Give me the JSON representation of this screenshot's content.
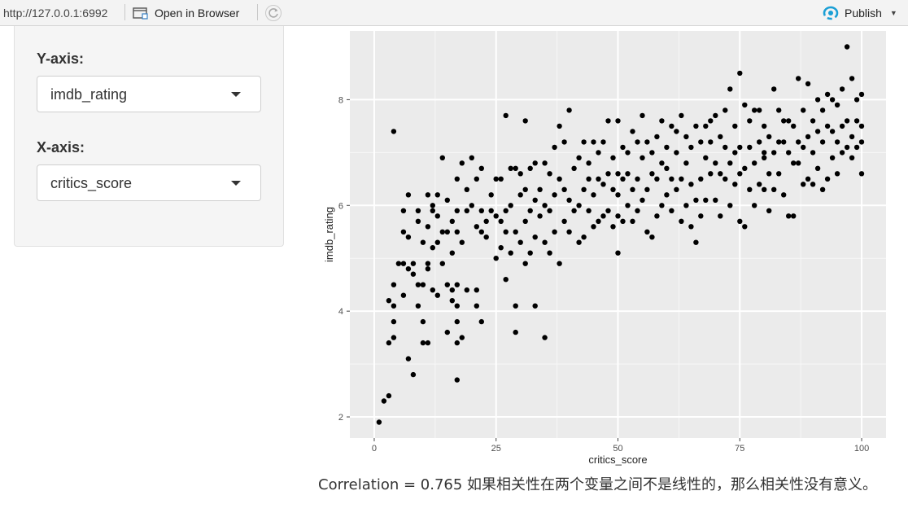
{
  "toolbar": {
    "url": "http://127.0.0.1:6992",
    "open_in_browser_label": "Open in Browser",
    "publish_label": "Publish",
    "accent_color": "#1a9fd5"
  },
  "sidebar": {
    "y_axis_label": "Y-axis:",
    "y_axis_value": "imdb_rating",
    "x_axis_label": "X-axis:",
    "x_axis_value": "critics_score"
  },
  "caption": "Correlation = 0.765 如果相关性在两个变量之间不是线性的，那么相关性没有意义。",
  "chart_data": {
    "type": "scatter",
    "xlabel": "critics_score",
    "ylabel": "imdb_rating",
    "xlim": [
      -5,
      105
    ],
    "ylim": [
      1.6,
      9.3
    ],
    "xticks": [
      0,
      25,
      50,
      75,
      100
    ],
    "yticks": [
      2,
      4,
      6,
      8
    ],
    "grid": true,
    "point_color": "#000000",
    "points": [
      [
        1,
        1.9
      ],
      [
        2,
        2.3
      ],
      [
        3,
        2.4
      ],
      [
        3,
        3.4
      ],
      [
        3,
        4.2
      ],
      [
        4,
        3.5
      ],
      [
        4,
        3.8
      ],
      [
        4,
        4.1
      ],
      [
        4,
        4.5
      ],
      [
        4,
        7.4
      ],
      [
        5,
        4.9
      ],
      [
        6,
        4.3
      ],
      [
        6,
        4.9
      ],
      [
        6,
        5.9
      ],
      [
        6,
        5.5
      ],
      [
        7,
        3.1
      ],
      [
        7,
        4.8
      ],
      [
        7,
        5.4
      ],
      [
        7,
        6.2
      ],
      [
        8,
        2.8
      ],
      [
        8,
        4.7
      ],
      [
        8,
        4.9
      ],
      [
        9,
        4.1
      ],
      [
        9,
        4.5
      ],
      [
        9,
        5.7
      ],
      [
        9,
        5.9
      ],
      [
        10,
        3.4
      ],
      [
        10,
        3.8
      ],
      [
        10,
        4.5
      ],
      [
        10,
        5.3
      ],
      [
        11,
        3.4
      ],
      [
        11,
        4.8
      ],
      [
        11,
        5.6
      ],
      [
        11,
        6.2
      ],
      [
        11,
        4.9
      ],
      [
        12,
        4.4
      ],
      [
        12,
        5.2
      ],
      [
        12,
        5.9
      ],
      [
        12,
        6.0
      ],
      [
        13,
        4.3
      ],
      [
        13,
        5.3
      ],
      [
        13,
        5.8
      ],
      [
        13,
        6.2
      ],
      [
        14,
        6.9
      ],
      [
        14,
        5.5
      ],
      [
        14,
        4.9
      ],
      [
        15,
        3.6
      ],
      [
        15,
        4.5
      ],
      [
        15,
        5.5
      ],
      [
        15,
        6.1
      ],
      [
        16,
        4.2
      ],
      [
        16,
        4.4
      ],
      [
        16,
        5.1
      ],
      [
        16,
        5.7
      ],
      [
        17,
        2.7
      ],
      [
        17,
        3.4
      ],
      [
        17,
        3.8
      ],
      [
        17,
        4.1
      ],
      [
        17,
        4.5
      ],
      [
        17,
        5.5
      ],
      [
        17,
        5.9
      ],
      [
        17,
        6.5
      ],
      [
        18,
        3.5
      ],
      [
        18,
        5.3
      ],
      [
        18,
        6.8
      ],
      [
        19,
        4.4
      ],
      [
        19,
        5.9
      ],
      [
        19,
        6.3
      ],
      [
        20,
        6.9
      ],
      [
        20,
        6.0
      ],
      [
        21,
        4.4
      ],
      [
        21,
        4.1
      ],
      [
        21,
        5.6
      ],
      [
        21,
        6.5
      ],
      [
        22,
        3.8
      ],
      [
        22,
        5.5
      ],
      [
        22,
        5.9
      ],
      [
        22,
        6.7
      ],
      [
        23,
        5.7
      ],
      [
        23,
        5.4
      ],
      [
        24,
        5.9
      ],
      [
        24,
        6.2
      ],
      [
        25,
        5.0
      ],
      [
        25,
        5.8
      ],
      [
        25,
        6.5
      ],
      [
        26,
        5.2
      ],
      [
        26,
        5.7
      ],
      [
        26,
        6.5
      ],
      [
        27,
        4.6
      ],
      [
        27,
        5.5
      ],
      [
        27,
        5.9
      ],
      [
        27,
        7.7
      ],
      [
        28,
        5.1
      ],
      [
        28,
        6.0
      ],
      [
        28,
        6.7
      ],
      [
        29,
        3.6
      ],
      [
        29,
        4.1
      ],
      [
        29,
        5.5
      ],
      [
        29,
        6.7
      ],
      [
        30,
        5.3
      ],
      [
        30,
        6.2
      ],
      [
        30,
        6.6
      ],
      [
        31,
        4.9
      ],
      [
        31,
        5.7
      ],
      [
        31,
        6.3
      ],
      [
        31,
        7.6
      ],
      [
        32,
        5.1
      ],
      [
        32,
        5.9
      ],
      [
        32,
        6.7
      ],
      [
        33,
        4.1
      ],
      [
        33,
        5.4
      ],
      [
        33,
        6.1
      ],
      [
        33,
        6.8
      ],
      [
        34,
        5.8
      ],
      [
        34,
        6.3
      ],
      [
        35,
        3.5
      ],
      [
        35,
        5.3
      ],
      [
        35,
        6.0
      ],
      [
        35,
        6.8
      ],
      [
        36,
        5.1
      ],
      [
        36,
        5.9
      ],
      [
        36,
        6.6
      ],
      [
        37,
        5.5
      ],
      [
        37,
        6.2
      ],
      [
        37,
        7.1
      ],
      [
        38,
        4.9
      ],
      [
        38,
        6.5
      ],
      [
        38,
        7.5
      ],
      [
        39,
        5.7
      ],
      [
        39,
        6.3
      ],
      [
        39,
        7.2
      ],
      [
        40,
        5.5
      ],
      [
        40,
        6.1
      ],
      [
        40,
        7.8
      ],
      [
        41,
        5.9
      ],
      [
        41,
        6.7
      ],
      [
        42,
        5.3
      ],
      [
        42,
        6.0
      ],
      [
        42,
        6.9
      ],
      [
        43,
        5.4
      ],
      [
        43,
        6.3
      ],
      [
        43,
        7.2
      ],
      [
        44,
        5.9
      ],
      [
        44,
        6.5
      ],
      [
        44,
        6.8
      ],
      [
        45,
        5.6
      ],
      [
        45,
        6.2
      ],
      [
        45,
        7.2
      ],
      [
        46,
        5.7
      ],
      [
        46,
        6.5
      ],
      [
        46,
        7.0
      ],
      [
        47,
        5.8
      ],
      [
        47,
        6.4
      ],
      [
        47,
        7.2
      ],
      [
        48,
        5.9
      ],
      [
        48,
        6.6
      ],
      [
        48,
        7.6
      ],
      [
        49,
        5.6
      ],
      [
        49,
        6.3
      ],
      [
        49,
        6.9
      ],
      [
        50,
        5.1
      ],
      [
        50,
        5.8
      ],
      [
        50,
        6.2
      ],
      [
        50,
        6.6
      ],
      [
        50,
        7.6
      ],
      [
        51,
        5.7
      ],
      [
        51,
        6.5
      ],
      [
        51,
        7.1
      ],
      [
        52,
        6.0
      ],
      [
        52,
        6.6
      ],
      [
        52,
        7.0
      ],
      [
        53,
        5.7
      ],
      [
        53,
        6.3
      ],
      [
        53,
        7.4
      ],
      [
        54,
        5.9
      ],
      [
        54,
        6.5
      ],
      [
        54,
        7.2
      ],
      [
        55,
        6.1
      ],
      [
        55,
        6.9
      ],
      [
        55,
        7.7
      ],
      [
        56,
        5.5
      ],
      [
        56,
        6.3
      ],
      [
        56,
        7.2
      ],
      [
        57,
        5.4
      ],
      [
        57,
        6.6
      ],
      [
        57,
        7.0
      ],
      [
        58,
        5.8
      ],
      [
        58,
        6.5
      ],
      [
        58,
        7.3
      ],
      [
        59,
        6.0
      ],
      [
        59,
        6.8
      ],
      [
        59,
        7.6
      ],
      [
        60,
        6.2
      ],
      [
        60,
        6.7
      ],
      [
        60,
        7.1
      ],
      [
        61,
        5.9
      ],
      [
        61,
        6.5
      ],
      [
        61,
        7.5
      ],
      [
        62,
        6.3
      ],
      [
        62,
        7.0
      ],
      [
        62,
        7.4
      ],
      [
        63,
        5.7
      ],
      [
        63,
        6.5
      ],
      [
        63,
        7.7
      ],
      [
        64,
        6.0
      ],
      [
        64,
        6.8
      ],
      [
        64,
        7.3
      ],
      [
        65,
        5.6
      ],
      [
        65,
        6.4
      ],
      [
        65,
        7.1
      ],
      [
        66,
        5.3
      ],
      [
        66,
        6.1
      ],
      [
        66,
        7.5
      ],
      [
        67,
        5.8
      ],
      [
        67,
        6.5
      ],
      [
        67,
        7.2
      ],
      [
        68,
        6.1
      ],
      [
        68,
        6.9
      ],
      [
        68,
        7.5
      ],
      [
        69,
        6.6
      ],
      [
        69,
        7.2
      ],
      [
        69,
        7.6
      ],
      [
        70,
        6.1
      ],
      [
        70,
        6.8
      ],
      [
        70,
        7.7
      ],
      [
        71,
        5.8
      ],
      [
        71,
        6.6
      ],
      [
        71,
        7.3
      ],
      [
        72,
        6.5
      ],
      [
        72,
        7.1
      ],
      [
        72,
        7.8
      ],
      [
        73,
        6.0
      ],
      [
        73,
        6.8
      ],
      [
        73,
        8.2
      ],
      [
        74,
        6.4
      ],
      [
        74,
        7.0
      ],
      [
        74,
        7.5
      ],
      [
        75,
        5.7
      ],
      [
        75,
        6.6
      ],
      [
        75,
        7.1
      ],
      [
        75,
        8.5
      ],
      [
        76,
        5.6
      ],
      [
        76,
        6.7
      ],
      [
        76,
        7.9
      ],
      [
        77,
        6.3
      ],
      [
        77,
        7.1
      ],
      [
        77,
        7.6
      ],
      [
        78,
        6.0
      ],
      [
        78,
        6.8
      ],
      [
        78,
        7.8
      ],
      [
        79,
        6.4
      ],
      [
        79,
        7.2
      ],
      [
        79,
        7.8
      ],
      [
        80,
        6.3
      ],
      [
        80,
        6.9
      ],
      [
        80,
        7.5
      ],
      [
        80,
        7.0
      ],
      [
        81,
        5.9
      ],
      [
        81,
        6.6
      ],
      [
        81,
        7.3
      ],
      [
        82,
        6.3
      ],
      [
        82,
        7.0
      ],
      [
        82,
        8.2
      ],
      [
        83,
        6.6
      ],
      [
        83,
        7.2
      ],
      [
        83,
        7.8
      ],
      [
        84,
        6.2
      ],
      [
        84,
        7.6
      ],
      [
        84,
        7.2
      ],
      [
        85,
        5.8
      ],
      [
        85,
        7.0
      ],
      [
        85,
        7.6
      ],
      [
        86,
        5.8
      ],
      [
        86,
        6.8
      ],
      [
        86,
        7.5
      ],
      [
        87,
        6.8
      ],
      [
        87,
        7.2
      ],
      [
        87,
        8.4
      ],
      [
        88,
        6.4
      ],
      [
        88,
        7.1
      ],
      [
        88,
        7.8
      ],
      [
        89,
        6.5
      ],
      [
        89,
        7.3
      ],
      [
        89,
        8.3
      ],
      [
        90,
        6.4
      ],
      [
        90,
        7.0
      ],
      [
        90,
        7.6
      ],
      [
        91,
        6.7
      ],
      [
        91,
        7.4
      ],
      [
        91,
        8.0
      ],
      [
        92,
        6.3
      ],
      [
        92,
        7.2
      ],
      [
        92,
        7.8
      ],
      [
        93,
        6.5
      ],
      [
        93,
        7.5
      ],
      [
        93,
        8.1
      ],
      [
        94,
        6.9
      ],
      [
        94,
        7.4
      ],
      [
        94,
        8.0
      ],
      [
        95,
        6.6
      ],
      [
        95,
        7.2
      ],
      [
        95,
        7.9
      ],
      [
        96,
        7.0
      ],
      [
        96,
        7.5
      ],
      [
        96,
        8.2
      ],
      [
        97,
        7.1
      ],
      [
        97,
        7.6
      ],
      [
        97,
        9.0
      ],
      [
        98,
        6.9
      ],
      [
        98,
        7.3
      ],
      [
        98,
        8.4
      ],
      [
        99,
        7.1
      ],
      [
        99,
        7.6
      ],
      [
        99,
        8.0
      ],
      [
        100,
        6.6
      ],
      [
        100,
        7.2
      ],
      [
        100,
        7.5
      ],
      [
        100,
        8.1
      ]
    ]
  }
}
